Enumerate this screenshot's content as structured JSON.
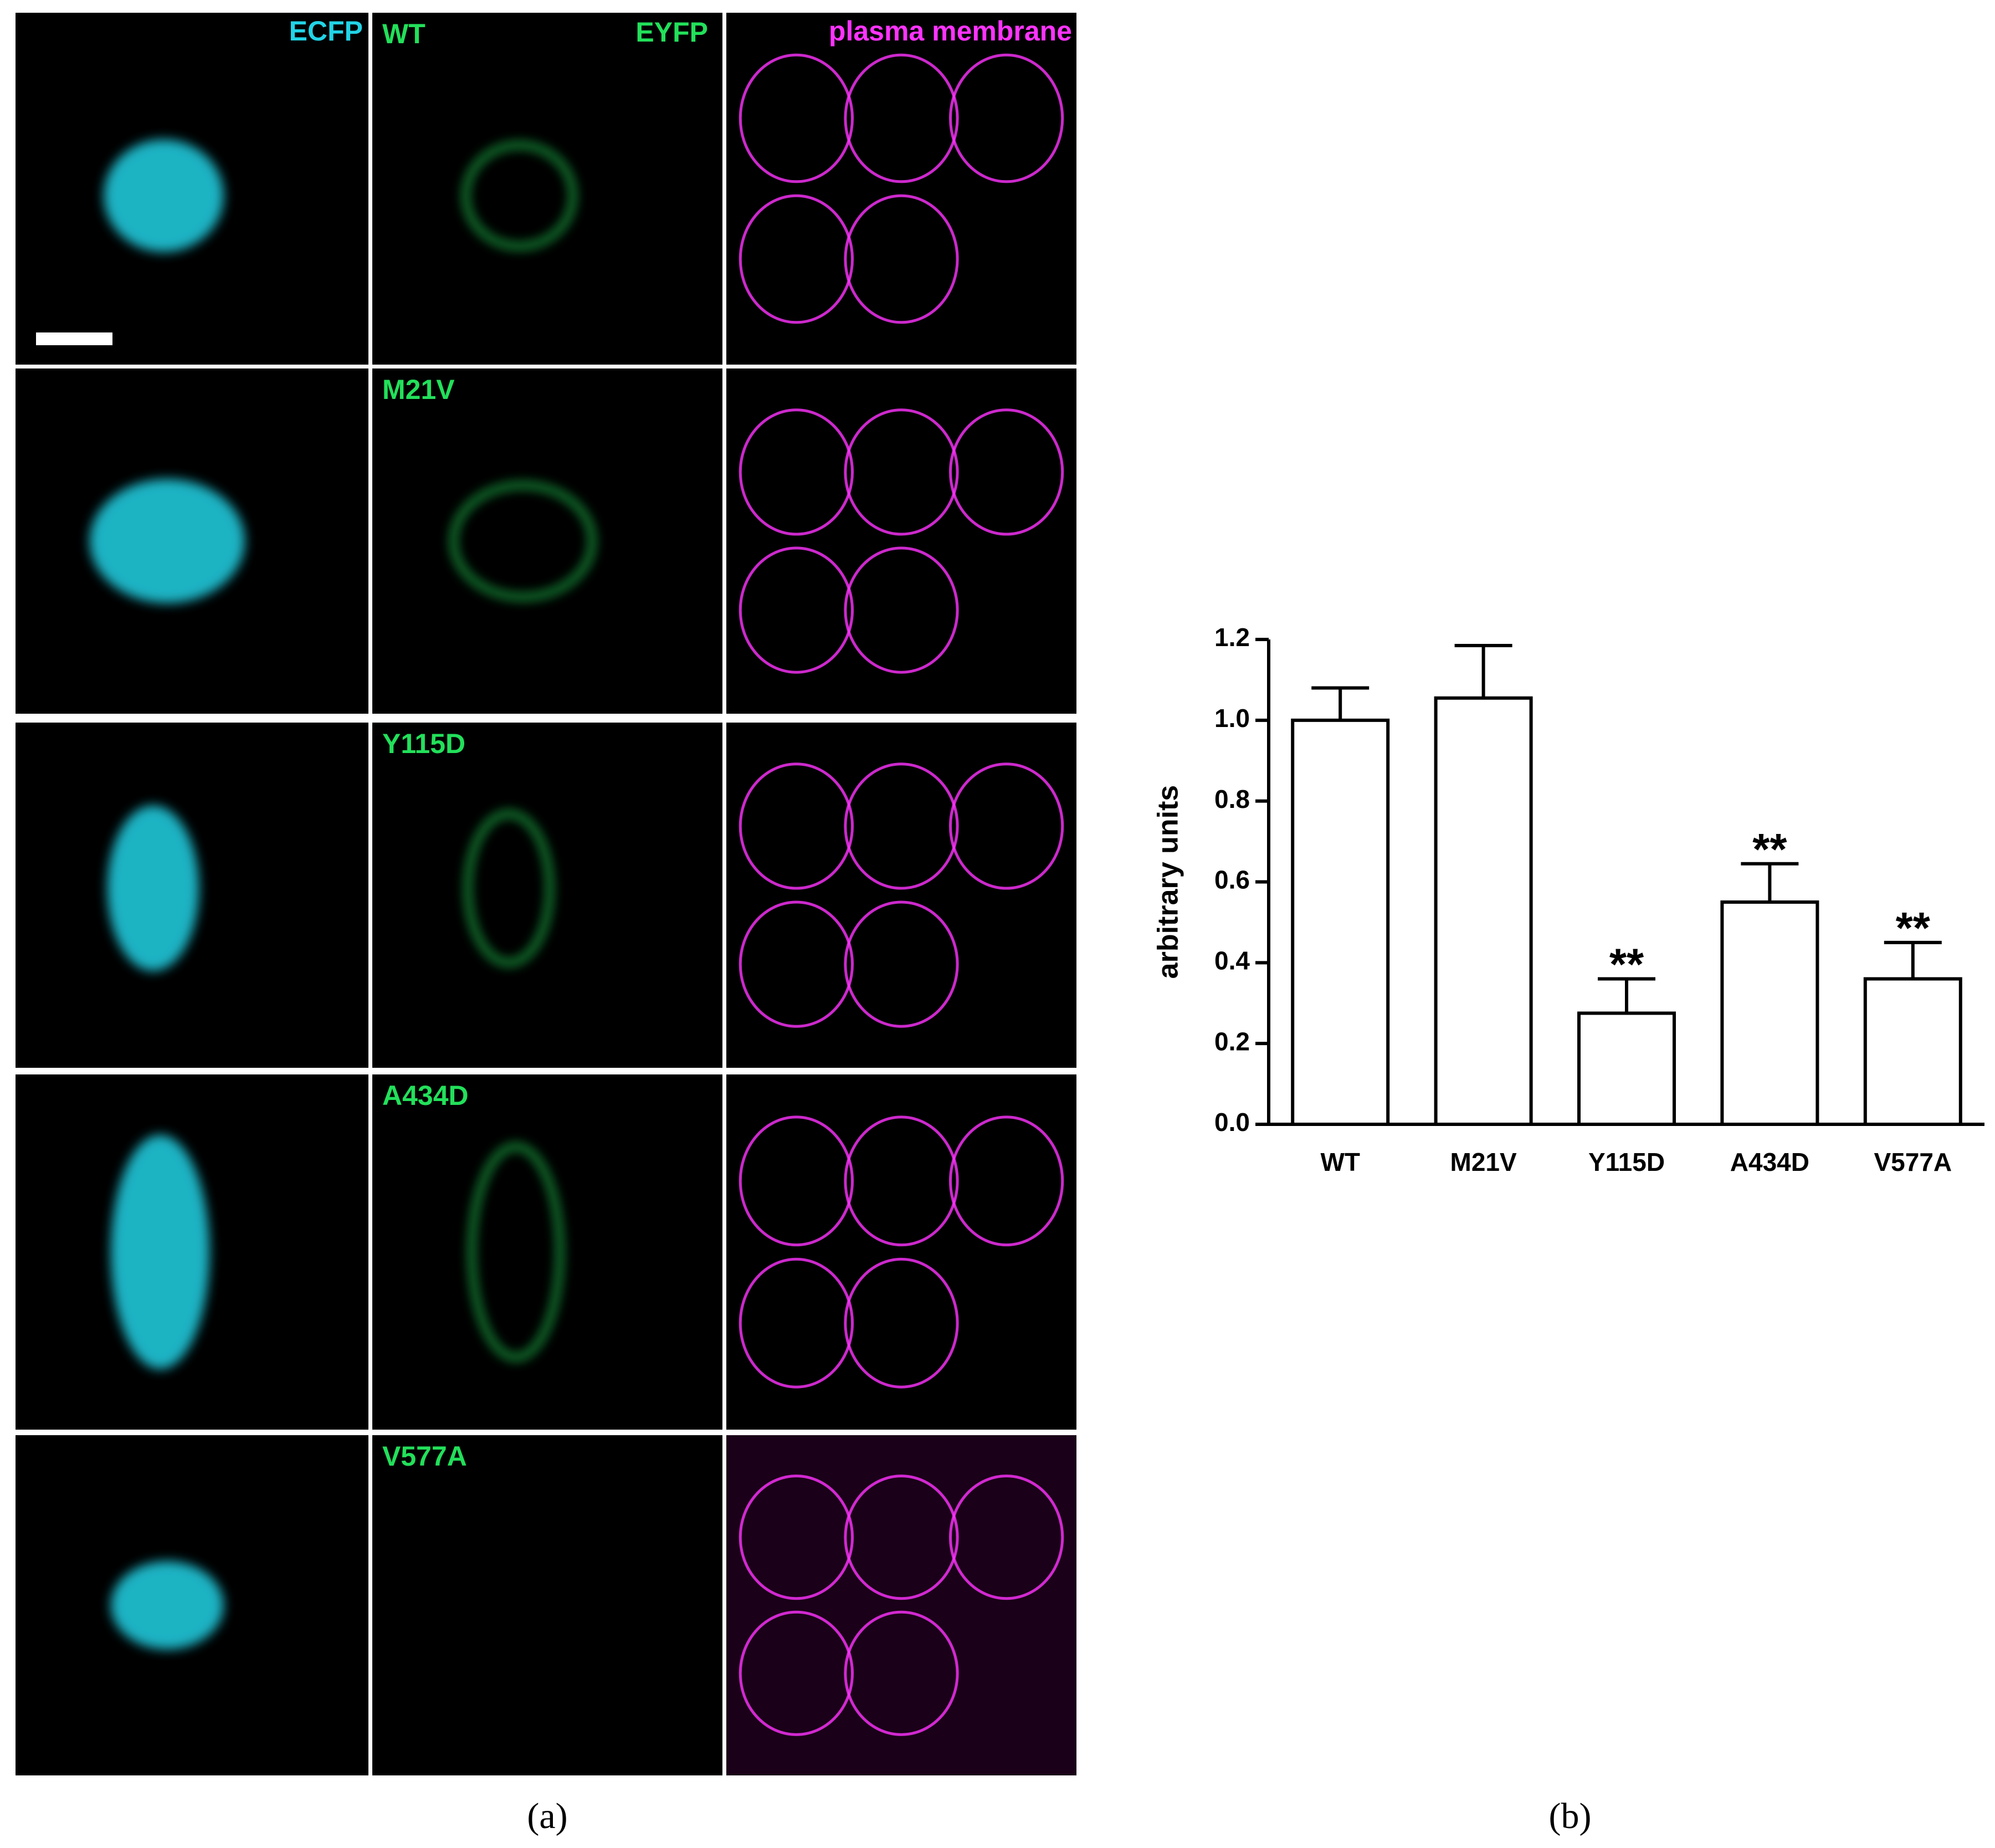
{
  "chart_data": {
    "type": "bar",
    "y_label": "arbitrary units",
    "categories": [
      "WT",
      "M21V",
      "Y115D",
      "A434D",
      "V577A"
    ],
    "values": [
      1.0,
      1.055,
      0.275,
      0.55,
      0.36
    ],
    "errors": [
      0.08,
      0.13,
      0.085,
      0.095,
      0.09
    ],
    "annotations": [
      {
        "category": "Y115D",
        "text": "**"
      },
      {
        "category": "A434D",
        "text": "**"
      },
      {
        "category": "V577A",
        "text": "**"
      }
    ],
    "color": "#ffffff",
    "edge_color": "#000000",
    "ylim": [
      0,
      1.2
    ],
    "yticks": [
      {
        "value": 0,
        "label": "0.0"
      },
      0.2,
      0.4,
      0.6,
      0.8,
      {
        "value": 1,
        "label": "1.0"
      },
      1.2
    ],
    "grid": false,
    "caption": "(b)"
  },
  "microscopy": {
    "channels": [
      {
        "label": "ECFP",
        "color": "#22d3e6"
      },
      {
        "label": "EYFP",
        "color": "#22e05a"
      },
      {
        "label": "plasma membrane",
        "color": "#ff33ff"
      }
    ],
    "rows": [
      "WT",
      "M21V",
      "Y115D",
      "A434D",
      "V577A"
    ],
    "caption": "(a)"
  }
}
